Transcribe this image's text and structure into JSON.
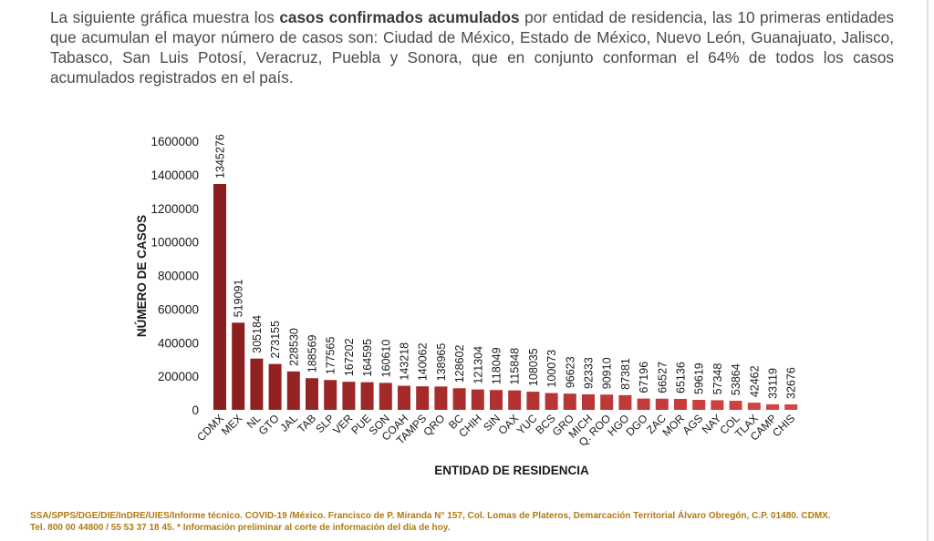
{
  "intro": {
    "pre": "La siguiente gráfica muestra los ",
    "bold": "casos confirmados acumulados",
    "post": " por entidad de residencia, las 10 primeras entidades que acumulan el mayor número de casos son: Ciudad de México, Estado de México, Nuevo León, Guanajuato, Jalisco, Tabasco, San Luis Potosí, Veracruz, Puebla y Sonora, que en conjunto conforman el 64% de todos los casos acumulados registrados en el país."
  },
  "footer": {
    "line1": "SSA/SPPS/DGE/DIE/InDRE/UIES/Informe técnico. COVID-19 /México. Francisco de P. Miranda N° 157, Col. Lomas de Plateros, Demarcación Territorial Álvaro Obregón, C.P. 01480. CDMX.",
    "line2": "Tel. 800 00 44800 / 55 53 37 18 45. * Información preliminar al corte de información del día de hoy."
  },
  "colors": {
    "bar_dark": "#8b1e1e",
    "bar_light": "#d64545",
    "axis": "#1a1a1a"
  },
  "chart_data": {
    "type": "bar",
    "xlabel": "ENTIDAD DE RESIDENCIA",
    "ylabel": "NÚMERO DE CASOS",
    "ylim": [
      0,
      1600000
    ],
    "yticks": [
      "0",
      "200000",
      "400000",
      "600000",
      "800000",
      "1000000",
      "1200000",
      "1400000",
      "1600000"
    ],
    "grid": false,
    "categories": [
      "CDMX",
      "MEX",
      "NL",
      "GTO",
      "JAL",
      "TAB",
      "SLP",
      "VER",
      "PUE",
      "SON",
      "COAH",
      "TAMPS",
      "QRO",
      "BC",
      "CHIH",
      "SIN",
      "OAX",
      "YUC",
      "BCS",
      "GRO",
      "MICH",
      "Q. ROO",
      "HGO",
      "DGO",
      "ZAC",
      "MOR",
      "AGS",
      "NAY",
      "COL",
      "TLAX",
      "CAMP",
      "CHIS"
    ],
    "values": [
      1345276,
      519091,
      305184,
      273155,
      228530,
      188569,
      177565,
      167202,
      164595,
      160610,
      143218,
      140062,
      138965,
      128602,
      121304,
      118049,
      115848,
      108035,
      100073,
      96623,
      92333,
      90910,
      87381,
      67196,
      66527,
      65136,
      59619,
      57348,
      53864,
      42462,
      33119,
      32676
    ]
  }
}
